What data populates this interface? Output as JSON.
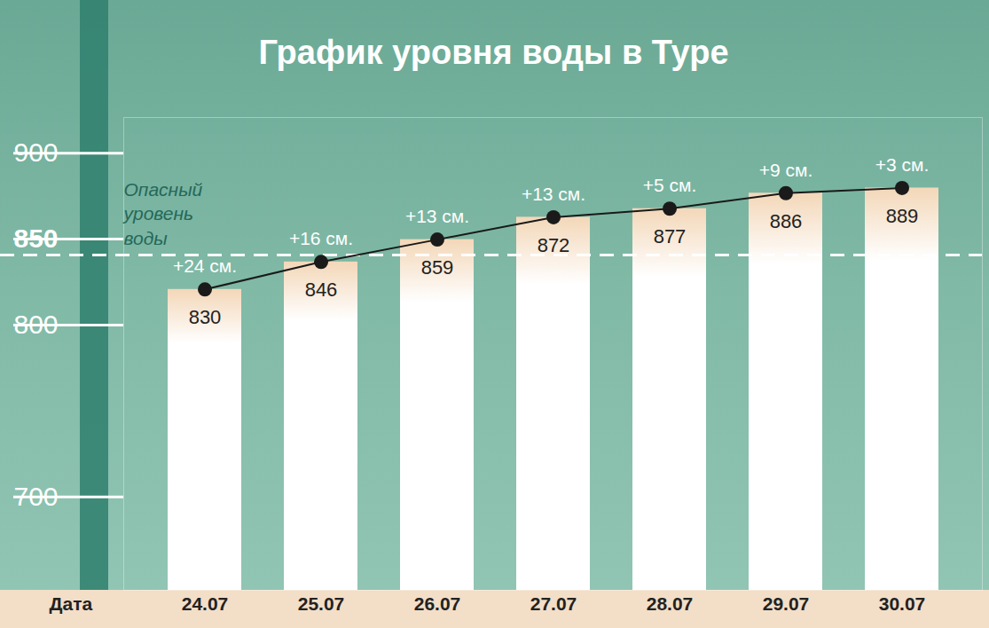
{
  "chart_data": {
    "type": "bar",
    "title": "График уровня воды в Туре",
    "x_label": "Дата",
    "categories": [
      "24.07",
      "25.07",
      "26.07",
      "27.07",
      "28.07",
      "29.07",
      "30.07"
    ],
    "values": [
      830,
      846,
      859,
      872,
      877,
      886,
      889
    ],
    "annotations": [
      "+24 см.",
      "+16 см.",
      "+13 см.",
      "+13 см.",
      "+5 см.",
      "+9 см.",
      "+3 см."
    ],
    "threshold": {
      "value": 850,
      "label": "Опасный уровень воды"
    },
    "color": "#ffffff",
    "ylim": [
      655,
      930
    ],
    "yticks": [
      700,
      800,
      850,
      900
    ],
    "grid": false,
    "data_labels": true,
    "marker": "circle"
  }
}
